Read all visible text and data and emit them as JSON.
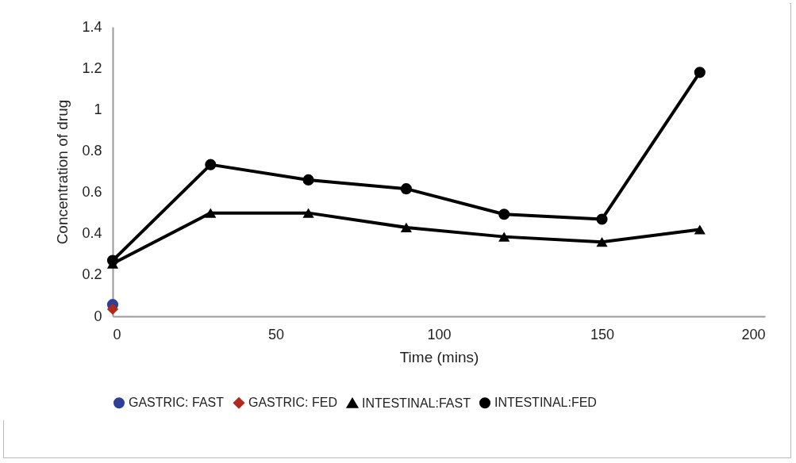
{
  "chart_data": {
    "type": "line",
    "xlabel": "Time (mins)",
    "ylabel": "Concentration of drug",
    "xlim": [
      0,
      200
    ],
    "xticks": [
      0,
      50,
      100,
      150,
      200
    ],
    "ylim": [
      0,
      1.4
    ],
    "yticks": [
      0,
      0.2,
      0.4,
      0.6,
      0.8,
      1,
      1.2,
      1.4
    ],
    "grid": false,
    "legend": "bottom",
    "series": [
      {
        "name": "GASTRIC: FAST",
        "color": "#2e3f9a",
        "marker": "circle",
        "x": [
          0
        ],
        "values": [
          0.057
        ]
      },
      {
        "name": "GASTRIC: FED",
        "color": "#b02a1e",
        "marker": "diamond",
        "x": [
          0
        ],
        "values": [
          0.035
        ]
      },
      {
        "name": "INTESTINAL:FAST",
        "color": "#000000",
        "marker": "triangle",
        "x": [
          0,
          30,
          60,
          90,
          120,
          150,
          180
        ],
        "values": [
          0.255,
          0.5,
          0.5,
          0.43,
          0.385,
          0.36,
          0.42
        ]
      },
      {
        "name": "INTESTINAL:FED",
        "color": "#000000",
        "marker": "circle",
        "x": [
          0,
          30,
          60,
          90,
          120,
          150,
          180
        ],
        "values": [
          0.27,
          0.734,
          0.66,
          0.617,
          0.494,
          0.47,
          1.18
        ]
      }
    ]
  }
}
